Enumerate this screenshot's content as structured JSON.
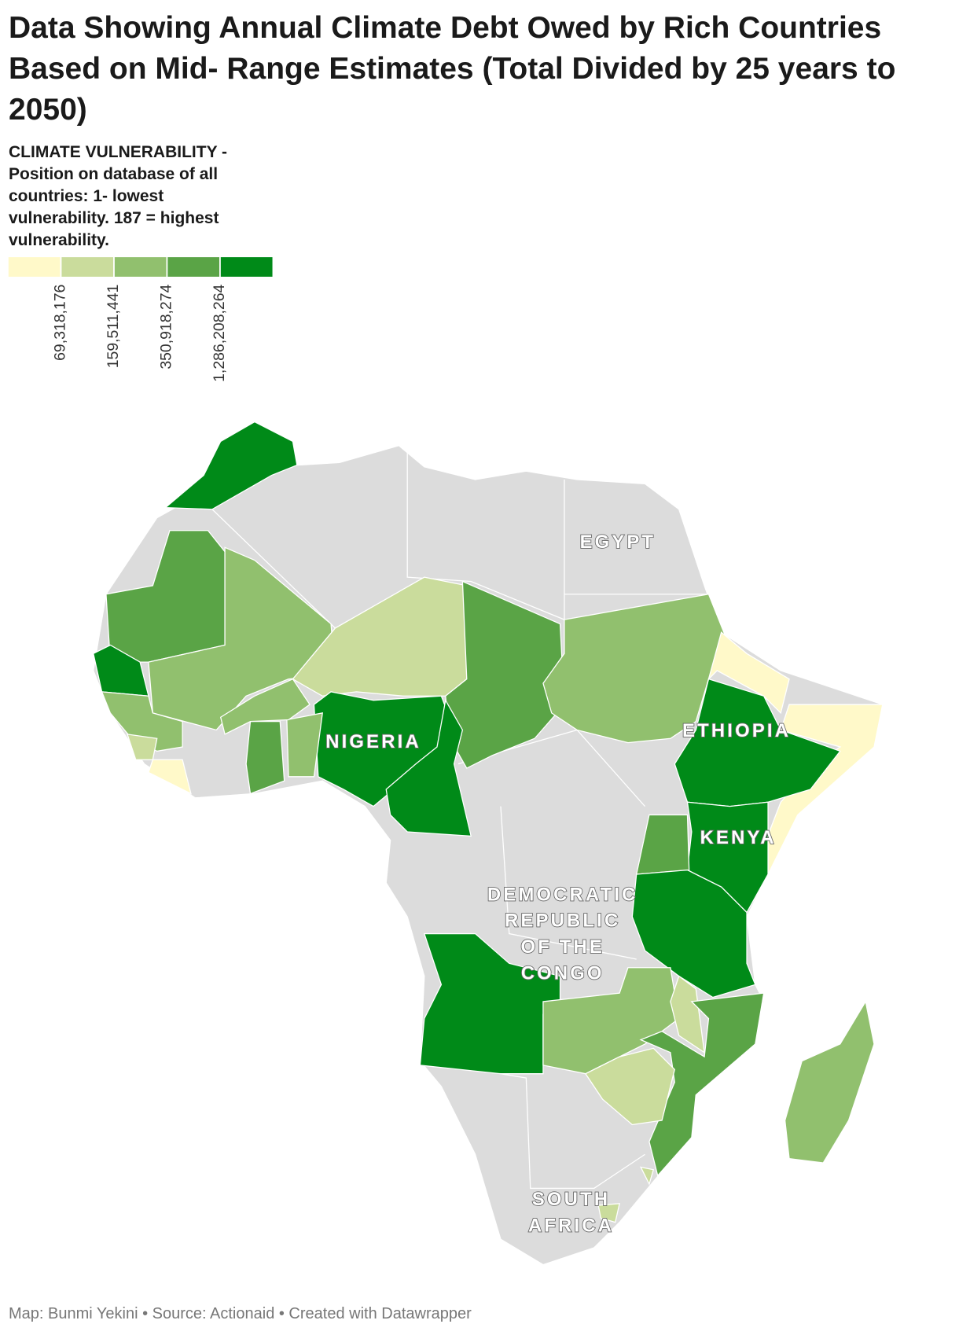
{
  "title": "Data Showing Annual Climate Debt Owed by Rich Countries Based on Mid- Range Estimates (Total Divided by 25 years to 2050)",
  "legend": {
    "description": "CLIMATE VULNERABILITY - Position on database of all countries: 1- lowest vulnerability. 187 = highest vulnerability.",
    "colors": [
      "#fff9c9",
      "#cadc9c",
      "#91c06e",
      "#5aa446",
      "#008a18"
    ],
    "ticks": [
      {
        "value": 69318176,
        "label": "69,318,176"
      },
      {
        "value": 159511441,
        "label": "159,511,441"
      },
      {
        "value": 350918274,
        "label": "350,918,274"
      },
      {
        "value": 1286208264,
        "label": "1,286,208,264"
      }
    ]
  },
  "map_labels": [
    {
      "label": [
        "EGYPT"
      ]
    },
    {
      "label": [
        "NIGERIA"
      ]
    },
    {
      "label": [
        "ETHIOPIA"
      ]
    },
    {
      "label": [
        "KENYA"
      ]
    },
    {
      "label": [
        "DEMOCRATIC",
        "REPUBLIC",
        "OF THE",
        "CONGO"
      ]
    },
    {
      "label": [
        "SOUTH",
        "AFRICA"
      ]
    }
  ],
  "footer": "Map: Bunmi Yekini • Source: Actionaid • Created with Datawrapper"
}
